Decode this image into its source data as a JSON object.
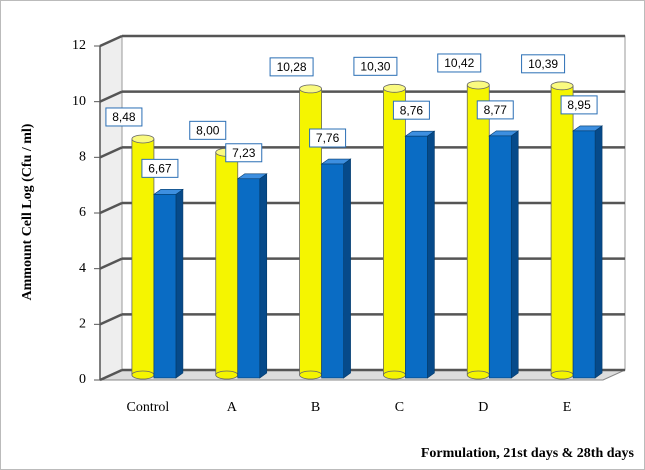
{
  "chart_data": {
    "type": "bar3d",
    "ylabel": "Ammount Cell Log  (Cfu / ml)",
    "xlabel": "Formulation, 21st days & 28th days",
    "categories": [
      "Control",
      "A",
      "B",
      "C",
      "D",
      "E"
    ],
    "series": [
      {
        "color": "#f5f500",
        "values": [
          8.48,
          8.0,
          10.28,
          10.3,
          10.42,
          10.39
        ],
        "value_labels": [
          "8,48",
          "8,00",
          "10,28",
          "10,30",
          "10,42",
          "10,39"
        ]
      },
      {
        "color": "#0a6cc4",
        "values": [
          6.67,
          7.23,
          7.76,
          8.76,
          8.77,
          8.95
        ],
        "value_labels": [
          "6,67",
          "7,23",
          "7,76",
          "8,76",
          "8,77",
          "8,95"
        ]
      }
    ],
    "ylim": [
      0,
      12
    ],
    "yticks": [
      0,
      2,
      4,
      6,
      8,
      10,
      12
    ],
    "grid": true
  }
}
